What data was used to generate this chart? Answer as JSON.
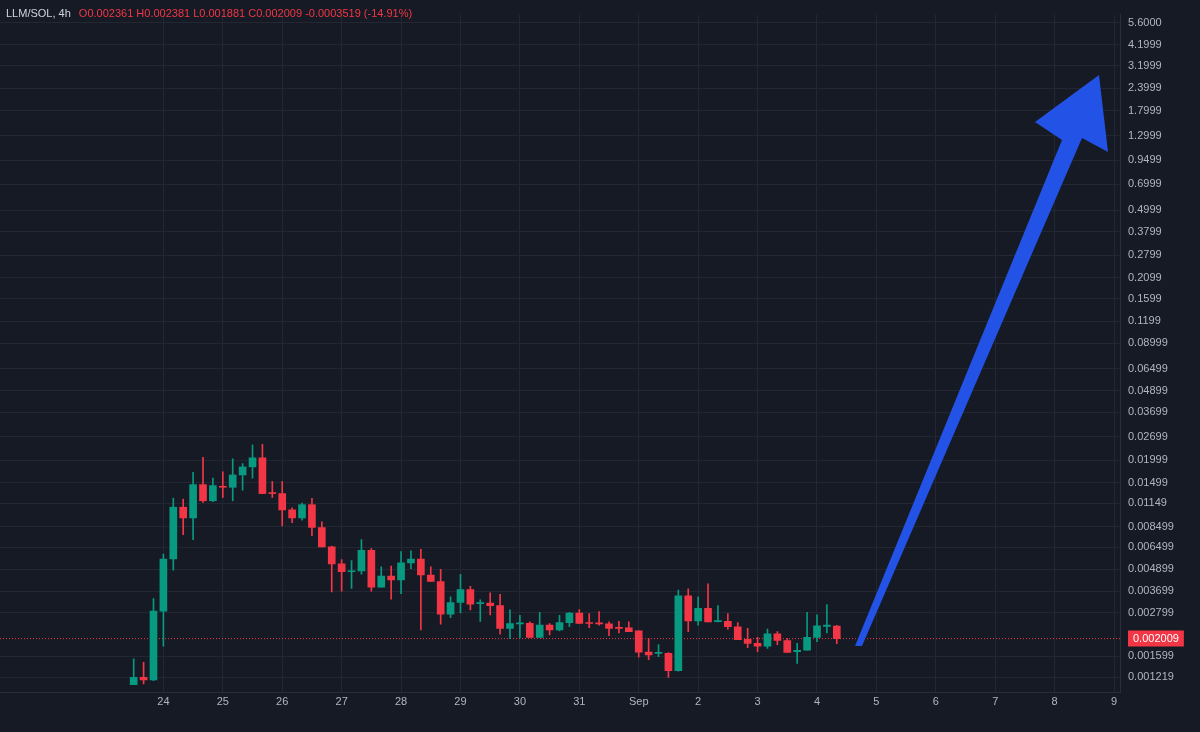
{
  "chart_data": {
    "type": "candlestick",
    "title": "LLM/SOL, 4h",
    "subtitle": "O0.002361 H0.002381 L0.001881 C0.002009 -0.0003519 (-14.91%)",
    "x": [
      "--08-23T12:00",
      "--08-23T16:00",
      "--08-23T20:00",
      "--08-24T00:00",
      "--08-24T04:00",
      "--08-24T08:00",
      "--08-24T12:00",
      "--08-24T16:00",
      "--08-24T20:00",
      "--08-25T00:00",
      "--08-25T04:00",
      "--08-25T08:00",
      "--08-25T12:00",
      "--08-25T16:00",
      "--08-25T20:00",
      "--08-26T00:00",
      "--08-26T04:00",
      "--08-26T08:00",
      "--08-26T12:00",
      "--08-26T16:00",
      "--08-26T20:00",
      "--08-27T00:00",
      "--08-27T04:00",
      "--08-27T08:00",
      "--08-27T12:00",
      "--08-27T16:00",
      "--08-27T20:00",
      "--08-28T00:00",
      "--08-28T04:00",
      "--08-28T08:00",
      "--08-28T12:00",
      "--08-28T16:00",
      "--08-28T20:00",
      "--08-29T00:00",
      "--08-29T04:00",
      "--08-29T08:00",
      "--08-29T12:00",
      "--08-29T16:00",
      "--08-29T20:00",
      "--08-30T00:00",
      "--08-30T04:00",
      "--08-30T08:00",
      "--08-30T12:00",
      "--08-30T16:00",
      "--08-30T20:00",
      "--08-31T00:00",
      "--08-31T04:00",
      "--08-31T08:00",
      "--08-31T12:00",
      "--08-31T16:00",
      "--08-31T20:00",
      "--09-01T00:00",
      "--09-01T04:00",
      "--09-01T08:00",
      "--09-01T12:00",
      "--09-01T16:00",
      "--09-01T20:00",
      "--09-02T00:00",
      "--09-02T04:00",
      "--09-02T08:00",
      "--09-02T12:00",
      "--09-02T16:00",
      "--09-02T20:00",
      "--09-03T00:00",
      "--09-03T04:00",
      "--09-03T08:00",
      "--09-03T12:00",
      "--09-03T16:00",
      "--09-03T20:00",
      "--09-04T00:00",
      "--09-04T04:00",
      "--09-04T08:00"
    ],
    "ohlc": [
      [
        0.00111,
        0.00155,
        0.00111,
        0.00122
      ],
      [
        0.00122,
        0.00148,
        0.00112,
        0.00118
      ],
      [
        0.00118,
        0.00336,
        0.00117,
        0.00286
      ],
      [
        0.00286,
        0.00596,
        0.00182,
        0.0056
      ],
      [
        0.0056,
        0.01225,
        0.00485,
        0.01091
      ],
      [
        0.01091,
        0.0121,
        0.00766,
        0.00951
      ],
      [
        0.00951,
        0.01709,
        0.00719,
        0.01459
      ],
      [
        0.01459,
        0.02076,
        0.01162,
        0.01185
      ],
      [
        0.01185,
        0.01586,
        0.0117,
        0.01441
      ],
      [
        0.01429,
        0.01722,
        0.01236,
        0.0141
      ],
      [
        0.0141,
        0.02036,
        0.01185,
        0.01653
      ],
      [
        0.01653,
        0.01913,
        0.01359,
        0.01833
      ],
      [
        0.01833,
        0.02433,
        0.01586,
        0.0206
      ],
      [
        0.0206,
        0.02455,
        0.013,
        0.013
      ],
      [
        0.01315,
        0.0152,
        0.01236,
        0.013
      ],
      [
        0.013,
        0.0152,
        0.00856,
        0.01055
      ],
      [
        0.01055,
        0.01081,
        0.00894,
        0.00951
      ],
      [
        0.00951,
        0.01151,
        0.00923,
        0.01127
      ],
      [
        0.01127,
        0.01225,
        0.00756,
        0.0084
      ],
      [
        0.0084,
        0.00905,
        0.00654,
        0.00654
      ],
      [
        0.00654,
        0.00662,
        0.00367,
        0.00526
      ],
      [
        0.00526,
        0.00556,
        0.0037,
        0.00475
      ],
      [
        0.00475,
        0.00549,
        0.00383,
        0.00481
      ],
      [
        0.00481,
        0.00719,
        0.00461,
        0.00627
      ],
      [
        0.00627,
        0.0064,
        0.0037,
        0.0039
      ],
      [
        0.0039,
        0.00506,
        0.0039,
        0.0045
      ],
      [
        0.0045,
        0.00512,
        0.00334,
        0.00428
      ],
      [
        0.00428,
        0.00617,
        0.00358,
        0.00533
      ],
      [
        0.00533,
        0.00622,
        0.00495,
        0.0056
      ],
      [
        0.0056,
        0.00635,
        0.00225,
        0.00456
      ],
      [
        0.00456,
        0.00506,
        0.00419,
        0.00419
      ],
      [
        0.00419,
        0.00491,
        0.00242,
        0.00275
      ],
      [
        0.00275,
        0.00344,
        0.00263,
        0.0032
      ],
      [
        0.0032,
        0.00459,
        0.0028,
        0.00378
      ],
      [
        0.00378,
        0.00394,
        0.00291,
        0.00313
      ],
      [
        0.00315,
        0.00331,
        0.00251,
        0.00317
      ],
      [
        0.00317,
        0.00362,
        0.00273,
        0.00307
      ],
      [
        0.00307,
        0.00355,
        0.00213,
        0.00229
      ],
      [
        0.00229,
        0.00291,
        0.00201,
        0.00244
      ],
      [
        0.00243,
        0.00271,
        0.00203,
        0.00244
      ],
      [
        0.00245,
        0.00249,
        0.00204,
        0.00204
      ],
      [
        0.00204,
        0.00282,
        0.00204,
        0.00239
      ],
      [
        0.00239,
        0.00244,
        0.00211,
        0.00225
      ],
      [
        0.00225,
        0.00271,
        0.00222,
        0.00247
      ],
      [
        0.00247,
        0.00282,
        0.00234,
        0.00279
      ],
      [
        0.00279,
        0.00292,
        0.00244,
        0.00244
      ],
      [
        0.00245,
        0.00277,
        0.00231,
        0.00244
      ],
      [
        0.00244,
        0.00285,
        0.00239,
        0.00243
      ],
      [
        0.00243,
        0.00249,
        0.00209,
        0.00229
      ],
      [
        0.0023,
        0.00251,
        0.00216,
        0.00229
      ],
      [
        0.00231,
        0.00249,
        0.0022,
        0.0022
      ],
      [
        0.00222,
        0.00222,
        0.00158,
        0.00169
      ],
      [
        0.00169,
        0.00201,
        0.00153,
        0.00163
      ],
      [
        0.00166,
        0.00186,
        0.00159,
        0.00167
      ],
      [
        0.00166,
        0.00168,
        0.00122,
        0.00133
      ],
      [
        0.00133,
        0.00375,
        0.00132,
        0.00348
      ],
      [
        0.00348,
        0.00381,
        0.0022,
        0.00252
      ],
      [
        0.00252,
        0.00344,
        0.00239,
        0.00297
      ],
      [
        0.00297,
        0.00407,
        0.00249,
        0.00249
      ],
      [
        0.0025,
        0.00307,
        0.00249,
        0.00251
      ],
      [
        0.00251,
        0.00277,
        0.00227,
        0.00234
      ],
      [
        0.00234,
        0.00247,
        0.00198,
        0.00198
      ],
      [
        0.00199,
        0.00229,
        0.00179,
        0.00189
      ],
      [
        0.00189,
        0.00204,
        0.0017,
        0.00182
      ],
      [
        0.00182,
        0.00227,
        0.00177,
        0.00214
      ],
      [
        0.00214,
        0.0022,
        0.00186,
        0.00196
      ],
      [
        0.00196,
        0.00201,
        0.00168,
        0.00168
      ],
      [
        0.0017,
        0.00189,
        0.00146,
        0.00173
      ],
      [
        0.00173,
        0.00282,
        0.00173,
        0.00204
      ],
      [
        0.00204,
        0.00273,
        0.00193,
        0.00237
      ],
      [
        0.00235,
        0.00311,
        0.00216,
        0.00239
      ],
      [
        0.002361,
        0.002381,
        0.001881,
        0.002009
      ]
    ],
    "colors": [
      "#089981",
      "#f23645",
      "#089981",
      "#089981",
      "#089981",
      "#f23645",
      "#089981",
      "#f23645",
      "#089981",
      "#f23645",
      "#089981",
      "#089981",
      "#089981",
      "#f23645",
      "#f23645",
      "#f23645",
      "#f23645",
      "#089981",
      "#f23645",
      "#f23645",
      "#f23645",
      "#f23645",
      "#089981",
      "#089981",
      "#f23645",
      "#089981",
      "#f23645",
      "#089981",
      "#089981",
      "#f23645",
      "#f23645",
      "#f23645",
      "#089981",
      "#089981",
      "#f23645",
      "#089981",
      "#f23645",
      "#f23645",
      "#089981",
      "#089981",
      "#f23645",
      "#089981",
      "#f23645",
      "#089981",
      "#089981",
      "#f23645",
      "#f23645",
      "#f23645",
      "#f23645",
      "#f23645",
      "#f23645",
      "#f23645",
      "#f23645",
      "#089981",
      "#f23645",
      "#089981",
      "#f23645",
      "#089981",
      "#f23645",
      "#089981",
      "#f23645",
      "#f23645",
      "#f23645",
      "#f23645",
      "#089981",
      "#f23645",
      "#f23645",
      "#089981",
      "#089981",
      "#089981",
      "#089981",
      "#f23645"
    ],
    "xlim": [
      "--08-21T06:00",
      "--09-09T02:24"
    ],
    "xticks": [
      {
        "value": "--08-24",
        "label": "24"
      },
      {
        "value": "--08-25",
        "label": "25"
      },
      {
        "value": "--08-26",
        "label": "26"
      },
      {
        "value": "--08-27",
        "label": "27"
      },
      {
        "value": "--08-28",
        "label": "28"
      },
      {
        "value": "--08-29",
        "label": "29"
      },
      {
        "value": "--08-30",
        "label": "30"
      },
      {
        "value": "--08-31",
        "label": "31"
      },
      {
        "value": "--09-01",
        "label": "Sep"
      },
      {
        "value": "--09-02",
        "label": "2"
      },
      {
        "value": "--09-03",
        "label": "3"
      },
      {
        "value": "--09-04",
        "label": "4"
      },
      {
        "value": "--09-05",
        "label": "5"
      },
      {
        "value": "--09-06",
        "label": "6"
      },
      {
        "value": "--09-07",
        "label": "7"
      },
      {
        "value": "--09-08",
        "label": "8"
      },
      {
        "value": "--09-09",
        "label": "9"
      }
    ],
    "ylim": [
      0.001,
      6.2
    ],
    "log": true,
    "yticks": [
      {
        "value": 5.6,
        "label": "5.6000"
      },
      4.1999,
      3.1999,
      2.3999,
      1.7999,
      1.2999,
      0.9499,
      0.6999,
      0.4999,
      0.3799,
      0.2799,
      0.2099,
      0.1599,
      0.1199,
      0.08999,
      0.06499,
      0.04899,
      0.03699,
      0.02699,
      0.01999,
      0.01499,
      0.01149,
      0.008499,
      0.006499,
      0.004899,
      0.003699,
      0.002799,
      0.001599,
      0.001219
    ],
    "grid": true,
    "ref_lines": [
      {
        "axis": "y",
        "value": 0.002009,
        "label": "0.002009",
        "color": "#f23645",
        "line_style": "dotted"
      }
    ]
  }
}
